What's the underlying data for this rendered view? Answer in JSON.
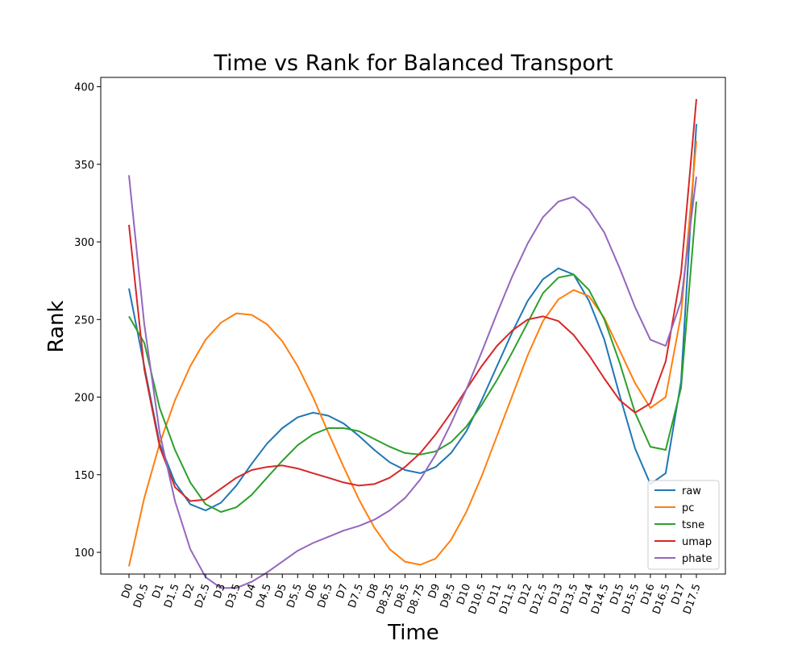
{
  "chart_data": {
    "type": "line",
    "title": "Time vs Rank for Balanced Transport",
    "xlabel": "Time",
    "ylabel": "Rank",
    "categories": [
      "D0",
      "D0.5",
      "D1",
      "D1.5",
      "D2",
      "D2.5",
      "D3",
      "D3.5",
      "D4",
      "D4.5",
      "D5",
      "D5.5",
      "D6",
      "D6.5",
      "D7",
      "D7.5",
      "D8",
      "D8.25",
      "D8.5",
      "D8.75",
      "D9",
      "D9.5",
      "D10",
      "D10.5",
      "D11",
      "D11.5",
      "D12",
      "D12.5",
      "D13",
      "D13.5",
      "D14",
      "D14.5",
      "D15",
      "D15.5",
      "D16",
      "D16.5",
      "D17",
      "D17.5"
    ],
    "ylim": [
      86,
      406
    ],
    "yticks": [
      100,
      150,
      200,
      250,
      300,
      350,
      400
    ],
    "grid": false,
    "legend_position": "lower-right",
    "series": [
      {
        "name": "raw",
        "color": "#1f77b4",
        "values": [
          270,
          220,
          170,
          145,
          131,
          127,
          132,
          143,
          157,
          170,
          180,
          187,
          190,
          188,
          183,
          175,
          166,
          158,
          153,
          151,
          155,
          164,
          178,
          198,
          220,
          242,
          262,
          276,
          283,
          279,
          262,
          237,
          201,
          167,
          144,
          151,
          210,
          376
        ]
      },
      {
        "name": "pc",
        "color": "#ff7f0e",
        "values": [
          91,
          135,
          170,
          198,
          220,
          237,
          248,
          254,
          253,
          247,
          236,
          220,
          200,
          177,
          155,
          134,
          116,
          102,
          94,
          92,
          96,
          108,
          126,
          149,
          175,
          201,
          227,
          249,
          263,
          269,
          265,
          251,
          230,
          209,
          193,
          200,
          253,
          365
        ]
      },
      {
        "name": "tsne",
        "color": "#2ca02c",
        "values": [
          252,
          235,
          193,
          166,
          145,
          131,
          126,
          129,
          137,
          148,
          159,
          169,
          176,
          180,
          180,
          178,
          173,
          168,
          164,
          163,
          165,
          171,
          181,
          195,
          211,
          229,
          248,
          267,
          277,
          279,
          269,
          250,
          222,
          190,
          168,
          166,
          206,
          326
        ]
      },
      {
        "name": "umap",
        "color": "#d62728",
        "values": [
          311,
          218,
          168,
          142,
          133,
          134,
          141,
          148,
          153,
          155,
          156,
          154,
          151,
          148,
          145,
          143,
          144,
          148,
          155,
          164,
          176,
          190,
          205,
          220,
          233,
          243,
          250,
          252,
          249,
          240,
          227,
          212,
          198,
          190,
          196,
          223,
          280,
          392
        ]
      },
      {
        "name": "phate",
        "color": "#9467bd",
        "values": [
          343,
          247,
          177,
          133,
          102,
          84,
          77,
          77,
          81,
          87,
          94,
          101,
          106,
          110,
          114,
          117,
          121,
          127,
          135,
          147,
          163,
          183,
          205,
          229,
          254,
          278,
          299,
          316,
          326,
          329,
          321,
          306,
          283,
          258,
          237,
          233,
          262,
          342
        ]
      }
    ]
  }
}
